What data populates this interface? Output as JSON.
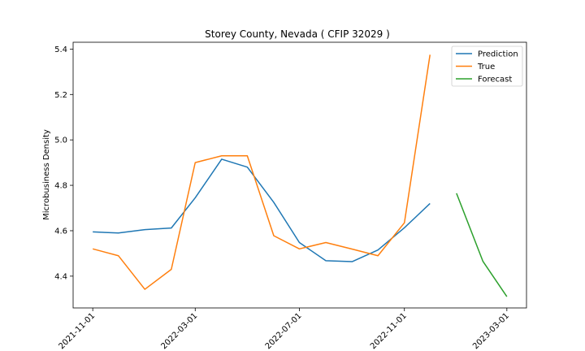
{
  "chart_data": {
    "type": "line",
    "title": "Storey County, Nevada ( CFIP 32029 )",
    "xlabel": "",
    "ylabel": "Microbusiness Density",
    "ylim": [
      4.26,
      5.43
    ],
    "xlim": [
      "2021-10-09",
      "2023-03-24"
    ],
    "x_ticks": [
      "2021-11-01",
      "2022-03-01",
      "2022-07-01",
      "2022-11-01",
      "2023-03-01"
    ],
    "y_ticks": [
      4.4,
      4.6,
      4.8,
      5.0,
      5.2,
      5.4
    ],
    "grid": false,
    "legend_position": "top-right",
    "series": [
      {
        "name": "Prediction",
        "color": "#1f77b4",
        "x": [
          "2021-11-01",
          "2021-12-01",
          "2022-01-01",
          "2022-02-01",
          "2022-03-01",
          "2022-04-01",
          "2022-05-01",
          "2022-06-01",
          "2022-07-01",
          "2022-08-01",
          "2022-09-01",
          "2022-10-01",
          "2022-11-01",
          "2022-12-01"
        ],
        "y": [
          4.595,
          4.59,
          4.605,
          4.612,
          4.745,
          4.915,
          4.88,
          4.725,
          4.548,
          4.468,
          4.464,
          4.515,
          4.613,
          4.72
        ]
      },
      {
        "name": "True",
        "color": "#ff7f0e",
        "x": [
          "2021-11-01",
          "2021-12-01",
          "2022-01-01",
          "2022-02-01",
          "2022-03-01",
          "2022-04-01",
          "2022-05-01",
          "2022-06-01",
          "2022-07-01",
          "2022-08-01",
          "2022-09-01",
          "2022-10-01",
          "2022-11-01",
          "2022-12-01"
        ],
        "y": [
          4.52,
          4.49,
          4.342,
          4.43,
          4.9,
          4.93,
          4.93,
          4.578,
          4.52,
          4.548,
          4.519,
          4.49,
          4.635,
          5.375
        ]
      },
      {
        "name": "Forecast",
        "color": "#2ca02c",
        "x": [
          "2023-01-01",
          "2023-02-01",
          "2023-03-01"
        ],
        "y": [
          4.765,
          4.465,
          4.31
        ]
      }
    ]
  }
}
